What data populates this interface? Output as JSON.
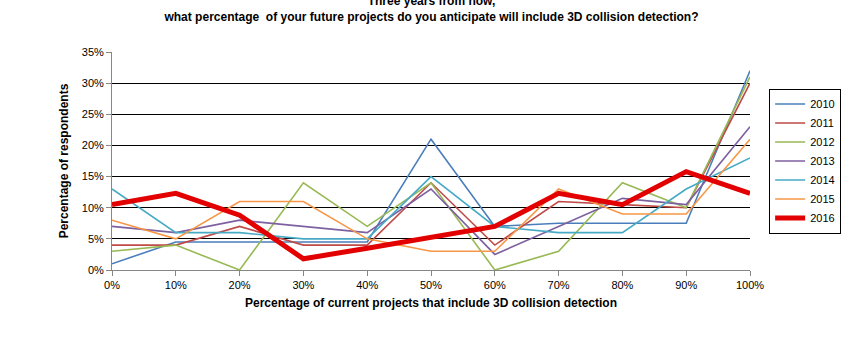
{
  "chart_data": {
    "type": "line",
    "title": "Three years from now,\nwhat percentage  of your future projects do you anticipate will include 3D collision detection?",
    "x_label": "Percentage of current projects that include 3D collision detection",
    "y_label": "Percentage of respondents",
    "categories": [
      "0%",
      "10%",
      "20%",
      "30%",
      "40%",
      "50%",
      "60%",
      "70%",
      "80%",
      "90%",
      "100%"
    ],
    "series": [
      {
        "name": "2010",
        "color": "#4a7ebb",
        "line_style": "solid",
        "values": [
          1,
          4.5,
          4.5,
          4.5,
          4.5,
          21,
          7,
          7.5,
          7.5,
          7.5,
          32
        ]
      },
      {
        "name": "2011",
        "color": "#be4b48",
        "line_style": "solid",
        "values": [
          4,
          4,
          7,
          4,
          4,
          14,
          4,
          11,
          10.5,
          10,
          30
        ]
      },
      {
        "name": "2012",
        "color": "#98b954",
        "line_style": "solid",
        "values": [
          3,
          4,
          0,
          14,
          7,
          14,
          0,
          3,
          14,
          10,
          31
        ]
      },
      {
        "name": "2013",
        "color": "#7d60a0",
        "line_style": "solid",
        "values": [
          7,
          6,
          8,
          7,
          6,
          13,
          2.5,
          7,
          11.5,
          10.5,
          23
        ]
      },
      {
        "name": "2014",
        "color": "#46aac5",
        "line_style": "solid",
        "values": [
          13,
          6,
          6,
          5,
          5,
          15,
          7,
          6,
          6,
          13,
          18
        ]
      },
      {
        "name": "2015",
        "color": "#f79646",
        "line_style": "solid",
        "values": [
          8,
          5,
          11,
          11,
          5,
          3,
          3,
          13,
          9,
          9,
          21
        ]
      },
      {
        "name": "2016",
        "color": "#e30000",
        "line_style": "thick",
        "values": [
          10.5,
          12.3,
          8.8,
          1.8,
          3.5,
          5.3,
          7,
          12.3,
          10.5,
          15.8,
          12.3
        ]
      }
    ],
    "ylim": [
      0,
      35
    ],
    "yticks": [
      {
        "value": 0,
        "label": "0%"
      },
      {
        "value": 5,
        "label": "5%"
      },
      {
        "value": 10,
        "label": "10%"
      },
      {
        "value": 15,
        "label": "15%"
      },
      {
        "value": 20,
        "label": "20%"
      },
      {
        "value": 25,
        "label": "25%"
      },
      {
        "value": 30,
        "label": "30%"
      },
      {
        "value": 35,
        "label": "35%"
      }
    ],
    "grid": true,
    "legend": "right"
  }
}
